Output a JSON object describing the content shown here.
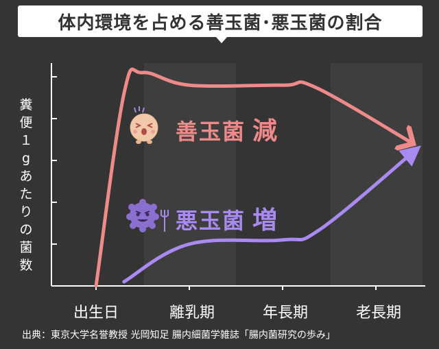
{
  "title": "体内環境を占める善玉菌･悪玉菌の割合",
  "source": "出典：東京大学名誉教授 光岡知足 腸内細菌学雑誌「腸内菌研究の歩み」",
  "colors": {
    "background": "#343434",
    "band": "#3e3e3e",
    "axis": "#ffffff",
    "good": "#ee8a8a",
    "bad": "#a98af0"
  },
  "chart_data": {
    "type": "line",
    "title": "体内環境を占める善玉菌･悪玉菌の割合",
    "ylabel": "糞便１gあたりの菌数",
    "xlabel": "",
    "categories": [
      "出生日",
      "離乳期",
      "年長期",
      "老長期"
    ],
    "ylim": [
      0,
      5
    ],
    "grid": false,
    "y_ticks_labeled": false,
    "shaded_bands": [
      "離乳期",
      "老長期"
    ],
    "series": [
      {
        "name": "善玉菌",
        "trend_label": "減",
        "color": "#ee8a8a",
        "points": [
          [
            0,
            0
          ],
          [
            0.3,
            4.6
          ],
          [
            0.5,
            5.1
          ],
          [
            1.0,
            4.8
          ],
          [
            2.0,
            4.8
          ],
          [
            2.35,
            4.75
          ],
          [
            3.4,
            3.4
          ]
        ],
        "end_arrow": true
      },
      {
        "name": "悪玉菌",
        "trend_label": "増",
        "color": "#a98af0",
        "points": [
          [
            0.3,
            0.1
          ],
          [
            1.0,
            1.0
          ],
          [
            2.0,
            1.1
          ],
          [
            2.4,
            1.35
          ],
          [
            3.4,
            3.2
          ]
        ],
        "end_arrow": true
      }
    ]
  }
}
